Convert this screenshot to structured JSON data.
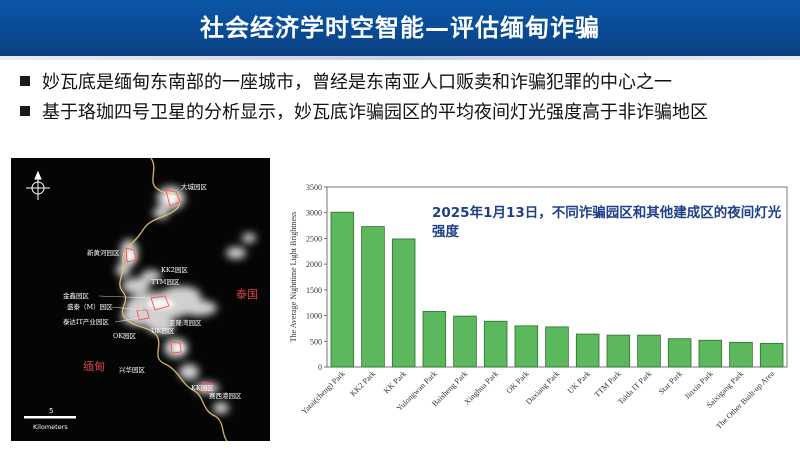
{
  "header": {
    "title": "社会经济学时空智能—评估缅甸诈骗"
  },
  "bullets": [
    "妙瓦底是缅甸东南部的一座城市，曾经是东南亚人口贩卖和诈骗犯罪的中心之一",
    "基于珞珈四号卫星的分析显示，妙瓦底诈骗园区的平均夜间灯光强度高于非诈骗地区"
  ],
  "map": {
    "labels": {
      "thailand": "泰国",
      "myanmar": "缅甸",
      "scale_value": "5",
      "scale_unit": "Kilometers",
      "dacheng": "大城园区",
      "xinhuang": "新黄河园区",
      "kk2": "KK2园区",
      "ttm": "TTM园区",
      "jinxin": "金鑫园区",
      "shengtai": "盛泰（M）园区",
      "taida": "泰达IT产业园区",
      "yalongwan": "亚隆湾园区",
      "ok": "OK园区",
      "uk": "UK园区",
      "xingfu": "兴华园区",
      "kk": "KK园区",
      "saixi": "赛西港园区"
    },
    "icons": [
      "compass-icon"
    ]
  },
  "chart_data": {
    "type": "bar",
    "annotation": "2025年1月13日，不同诈骗园区和其他建成区的夜间灯光强度",
    "ylabel": "The Average Nighttime Light Brightness",
    "xlabel": "",
    "ylim": [
      0,
      3500
    ],
    "yticks": [
      0,
      500,
      1000,
      1500,
      2000,
      2500,
      3000,
      3500
    ],
    "grid": false,
    "categories": [
      "Yatai(cheng) Park",
      "KK2 Park",
      "KK Park",
      "Yulongwan Park",
      "Baisheng Park",
      "Xinghua Park",
      "OK Park",
      "Daxiang Park",
      "UK Park",
      "TTM Park",
      "Taida IT Park",
      "Star Park",
      "Jinxin Park",
      "Saixigang Park",
      "The Other Built-up Area"
    ],
    "values": [
      3010,
      2730,
      2490,
      1080,
      990,
      890,
      800,
      780,
      640,
      620,
      620,
      550,
      520,
      480,
      460
    ],
    "colors": {
      "bar": "#5cb85c",
      "bar_stroke": "#2f6b2f"
    }
  }
}
